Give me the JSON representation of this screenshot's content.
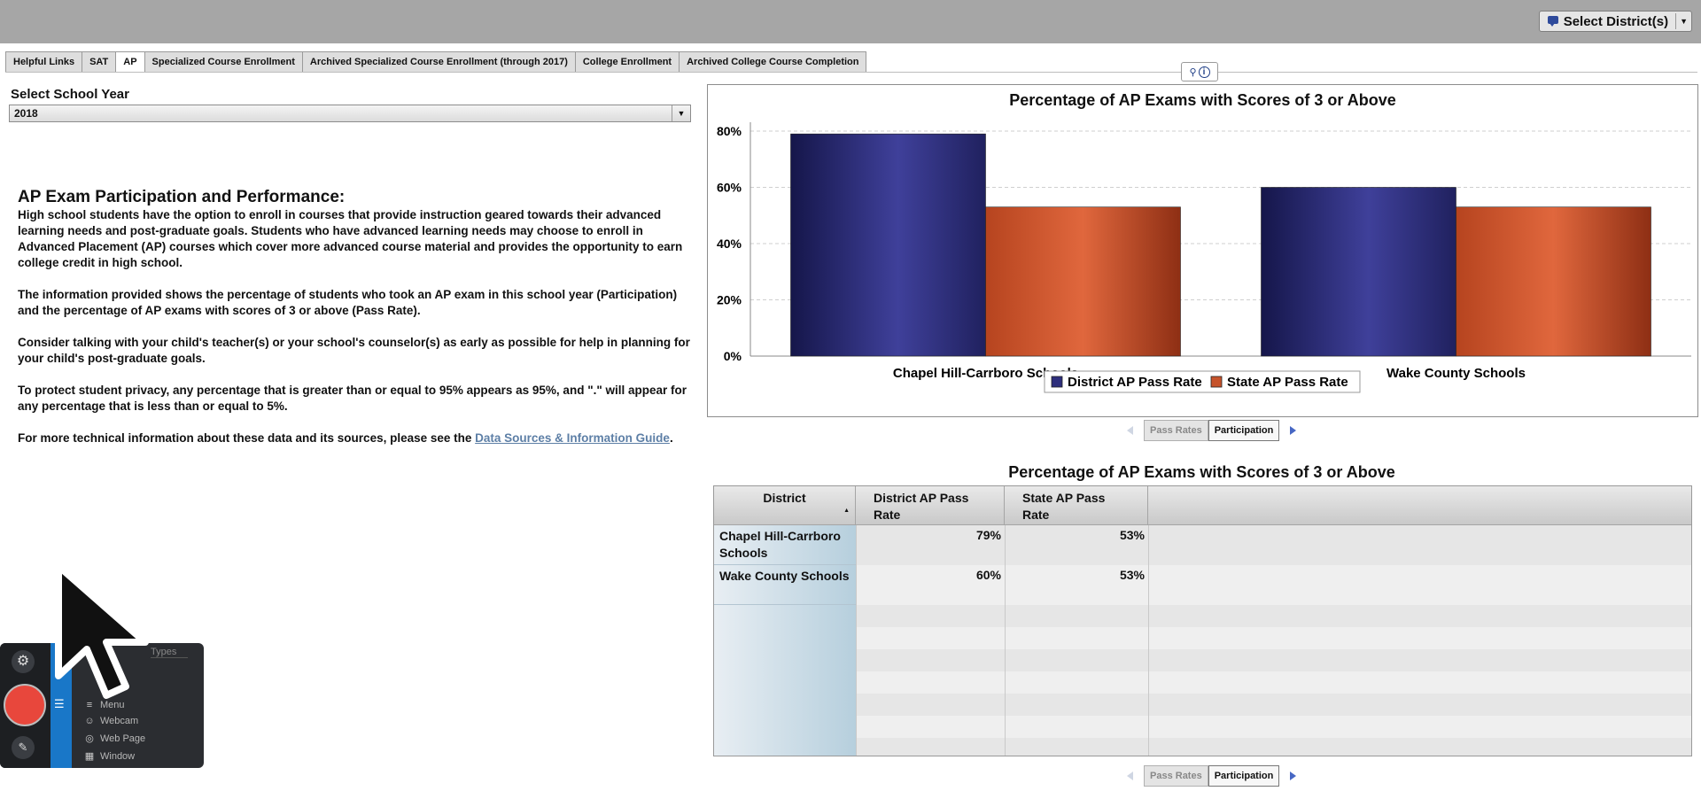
{
  "topbar": {
    "district_button": "Select District(s)"
  },
  "tabs": [
    {
      "label": "Helpful Links"
    },
    {
      "label": "SAT"
    },
    {
      "label": "AP",
      "active": true
    },
    {
      "label": "Specialized Course Enrollment"
    },
    {
      "label": "Archived Specialized Course Enrollment (through 2017)"
    },
    {
      "label": "College Enrollment"
    },
    {
      "label": "Archived College Course Completion"
    }
  ],
  "year": {
    "label": "Select School Year",
    "value": "2018"
  },
  "description": {
    "heading": "AP Exam Participation and Performance:",
    "p1": "High school students have the option to enroll in courses that provide instruction geared towards their advanced learning needs and post-graduate goals. Students who have advanced learning needs may choose to enroll in Advanced Placement (AP) courses which cover more advanced course material and provides the opportunity to earn college credit in high school.",
    "p2": "The information provided shows the percentage of students who took an AP exam in this school year (Participation) and the percentage of AP exams with scores of 3 or above (Pass Rate).",
    "p3": "Consider talking with your child's teacher(s) or your school's counselor(s) as early as possible for help in planning for your child's post-graduate goals.",
    "p4": "To protect student privacy, any percentage that is greater than or equal to 95% appears as 95%, and \".\" will appear for any percentage that is less than or equal to 5%.",
    "p5_prefix": "For more technical information about these data and its sources, please see the ",
    "p5_link": "Data Sources & Information Guide",
    "p5_suffix": "."
  },
  "pager": {
    "pass_rates": "Pass Rates",
    "participation": "Participation"
  },
  "chart_data": {
    "type": "bar",
    "title": "Percentage of AP Exams with Scores of 3 or Above",
    "categories": [
      "Chapel Hill-Carrboro Schools",
      "Wake County Schools"
    ],
    "series": [
      {
        "name": "District AP Pass Rate",
        "values": [
          79,
          60
        ],
        "color": "#2e2f7c"
      },
      {
        "name": "State AP Pass Rate",
        "values": [
          53,
          53
        ],
        "color": "#c6532b"
      }
    ],
    "ylim": [
      0,
      80
    ],
    "yticks": [
      0,
      20,
      40,
      60,
      80
    ],
    "ytick_labels": [
      "0%",
      "20%",
      "40%",
      "60%",
      "80%"
    ],
    "grid": true,
    "legend": "bottom-center"
  },
  "table": {
    "title": "Percentage of AP Exams with Scores of 3 or Above",
    "headers": [
      "District",
      "District AP Pass Rate",
      "State AP Pass Rate"
    ],
    "rows": [
      {
        "district": "Chapel Hill-Carrboro Schools",
        "district_rate": "79%",
        "state_rate": "53%"
      },
      {
        "district": "Wake County Schools",
        "district_rate": "60%",
        "state_rate": "53%"
      }
    ]
  },
  "recorder": {
    "types_header": "Types",
    "options": [
      "Menu",
      "Webcam",
      "Web Page",
      "Window"
    ]
  }
}
